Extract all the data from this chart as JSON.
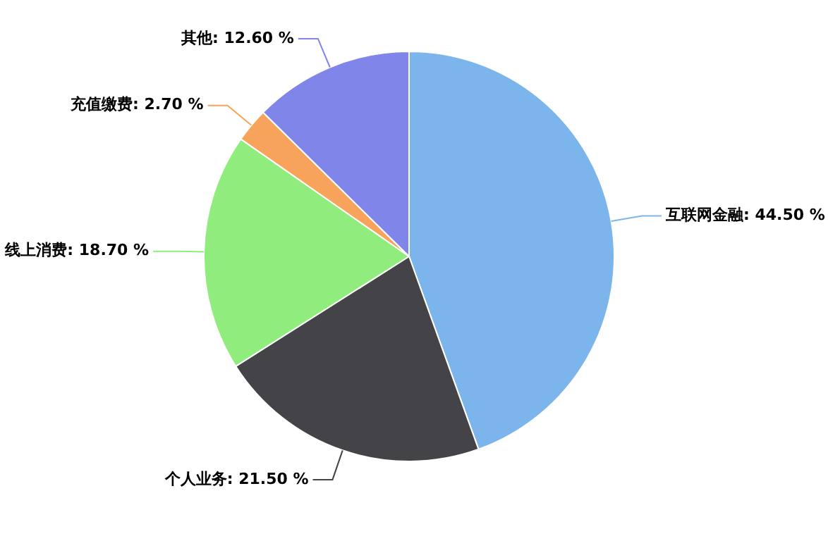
{
  "chart_data": {
    "type": "pie",
    "categories": [
      "互联网金融",
      "个人业务",
      "线上消费",
      "充值缴费",
      "其他"
    ],
    "values": [
      44.5,
      21.5,
      18.7,
      2.7,
      12.6
    ],
    "colors": [
      "#7cb5ec",
      "#434348",
      "#90ed7d",
      "#f7a35c",
      "#8085e9"
    ],
    "value_labels": [
      "44.50 %",
      "21.50 %",
      "18.70 %",
      "2.70 %",
      "12.60 %"
    ],
    "legend": false
  }
}
